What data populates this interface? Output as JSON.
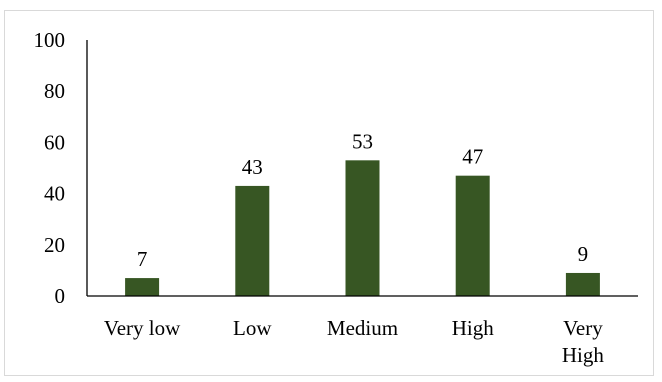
{
  "chart_data": {
    "type": "bar",
    "categories": [
      "Very low",
      "Low",
      "Medium",
      "High",
      "Very High"
    ],
    "category_lines": [
      [
        "Very low"
      ],
      [
        "Low"
      ],
      [
        "Medium"
      ],
      [
        "High"
      ],
      [
        "Very",
        "High"
      ]
    ],
    "values": [
      7,
      43,
      53,
      47,
      9
    ],
    "ylim": [
      0,
      100
    ],
    "yticks": [
      0,
      20,
      40,
      60,
      80,
      100
    ],
    "grid": false,
    "legend": "none",
    "title": "",
    "xlabel": "",
    "ylabel": "",
    "bar_color": "#375623",
    "data_labels": true
  }
}
